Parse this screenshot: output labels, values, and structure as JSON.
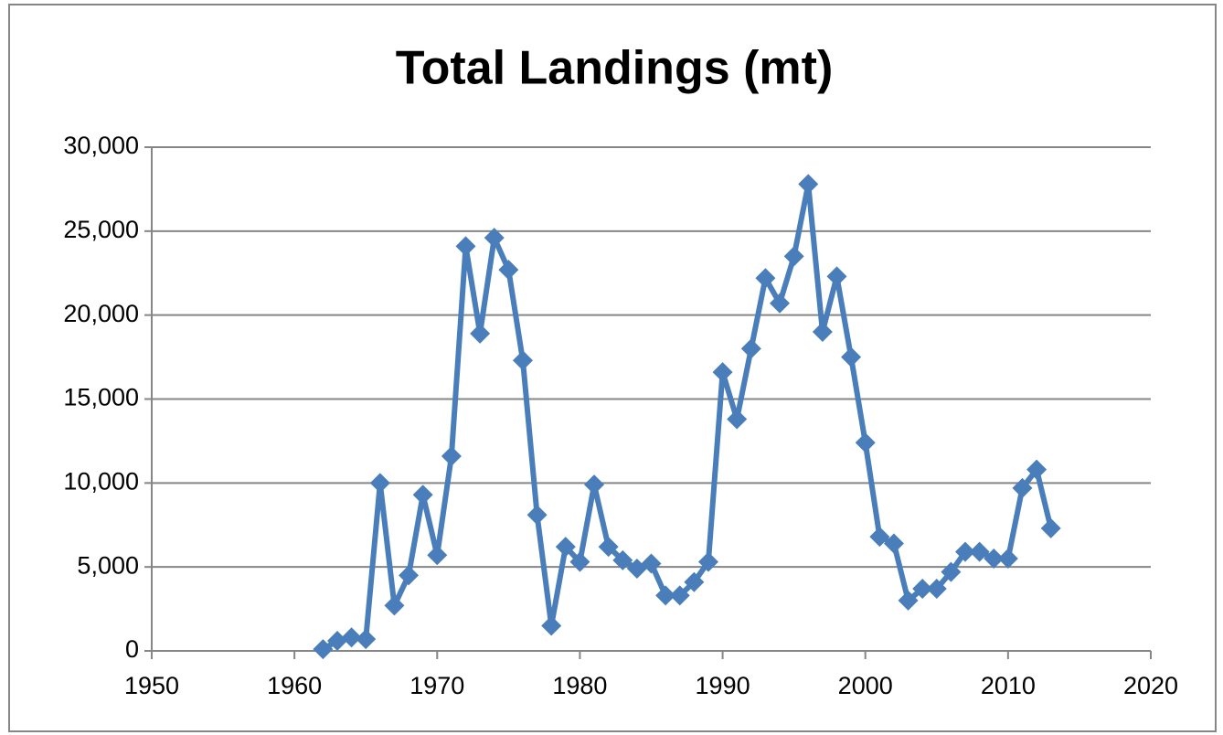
{
  "chart_data": {
    "type": "line",
    "title": "Total Landings (mt)",
    "x": [
      1962,
      1963,
      1964,
      1965,
      1966,
      1967,
      1968,
      1969,
      1970,
      1971,
      1972,
      1973,
      1974,
      1975,
      1976,
      1977,
      1978,
      1979,
      1980,
      1981,
      1982,
      1983,
      1984,
      1985,
      1986,
      1987,
      1988,
      1989,
      1990,
      1991,
      1992,
      1993,
      1994,
      1995,
      1996,
      1997,
      1998,
      1999,
      2000,
      2001,
      2002,
      2003,
      2004,
      2005,
      2006,
      2007,
      2008,
      2009,
      2010,
      2011,
      2012,
      2013
    ],
    "values": [
      100,
      600,
      800,
      700,
      10000,
      2700,
      4500,
      9300,
      5700,
      11600,
      24100,
      18900,
      24600,
      22700,
      17300,
      8100,
      1500,
      6200,
      5300,
      9900,
      6200,
      5400,
      4900,
      5200,
      3300,
      3300,
      4100,
      5300,
      16600,
      13800,
      18000,
      22200,
      20700,
      23500,
      27800,
      19000,
      22300,
      17500,
      12400,
      6800,
      6400,
      3000,
      3700,
      3700,
      4700,
      5900,
      5900,
      5500,
      5500,
      9700,
      10800,
      7300
    ],
    "color": "#4a7ebb",
    "xlim": [
      1950,
      2020
    ],
    "xticks": [
      1950,
      1960,
      1970,
      1980,
      1990,
      2000,
      2010,
      2020
    ],
    "ylim": [
      0,
      30000
    ],
    "yticks": [
      0,
      {
        "value": 5000,
        "label": "5,000"
      },
      {
        "value": 10000,
        "label": "10,000"
      },
      {
        "value": 15000,
        "label": "15,000"
      },
      {
        "value": 20000,
        "label": "20,000"
      },
      {
        "value": 25000,
        "label": "25,000"
      },
      {
        "value": 30000,
        "label": "30,000"
      }
    ],
    "grid": true
  }
}
